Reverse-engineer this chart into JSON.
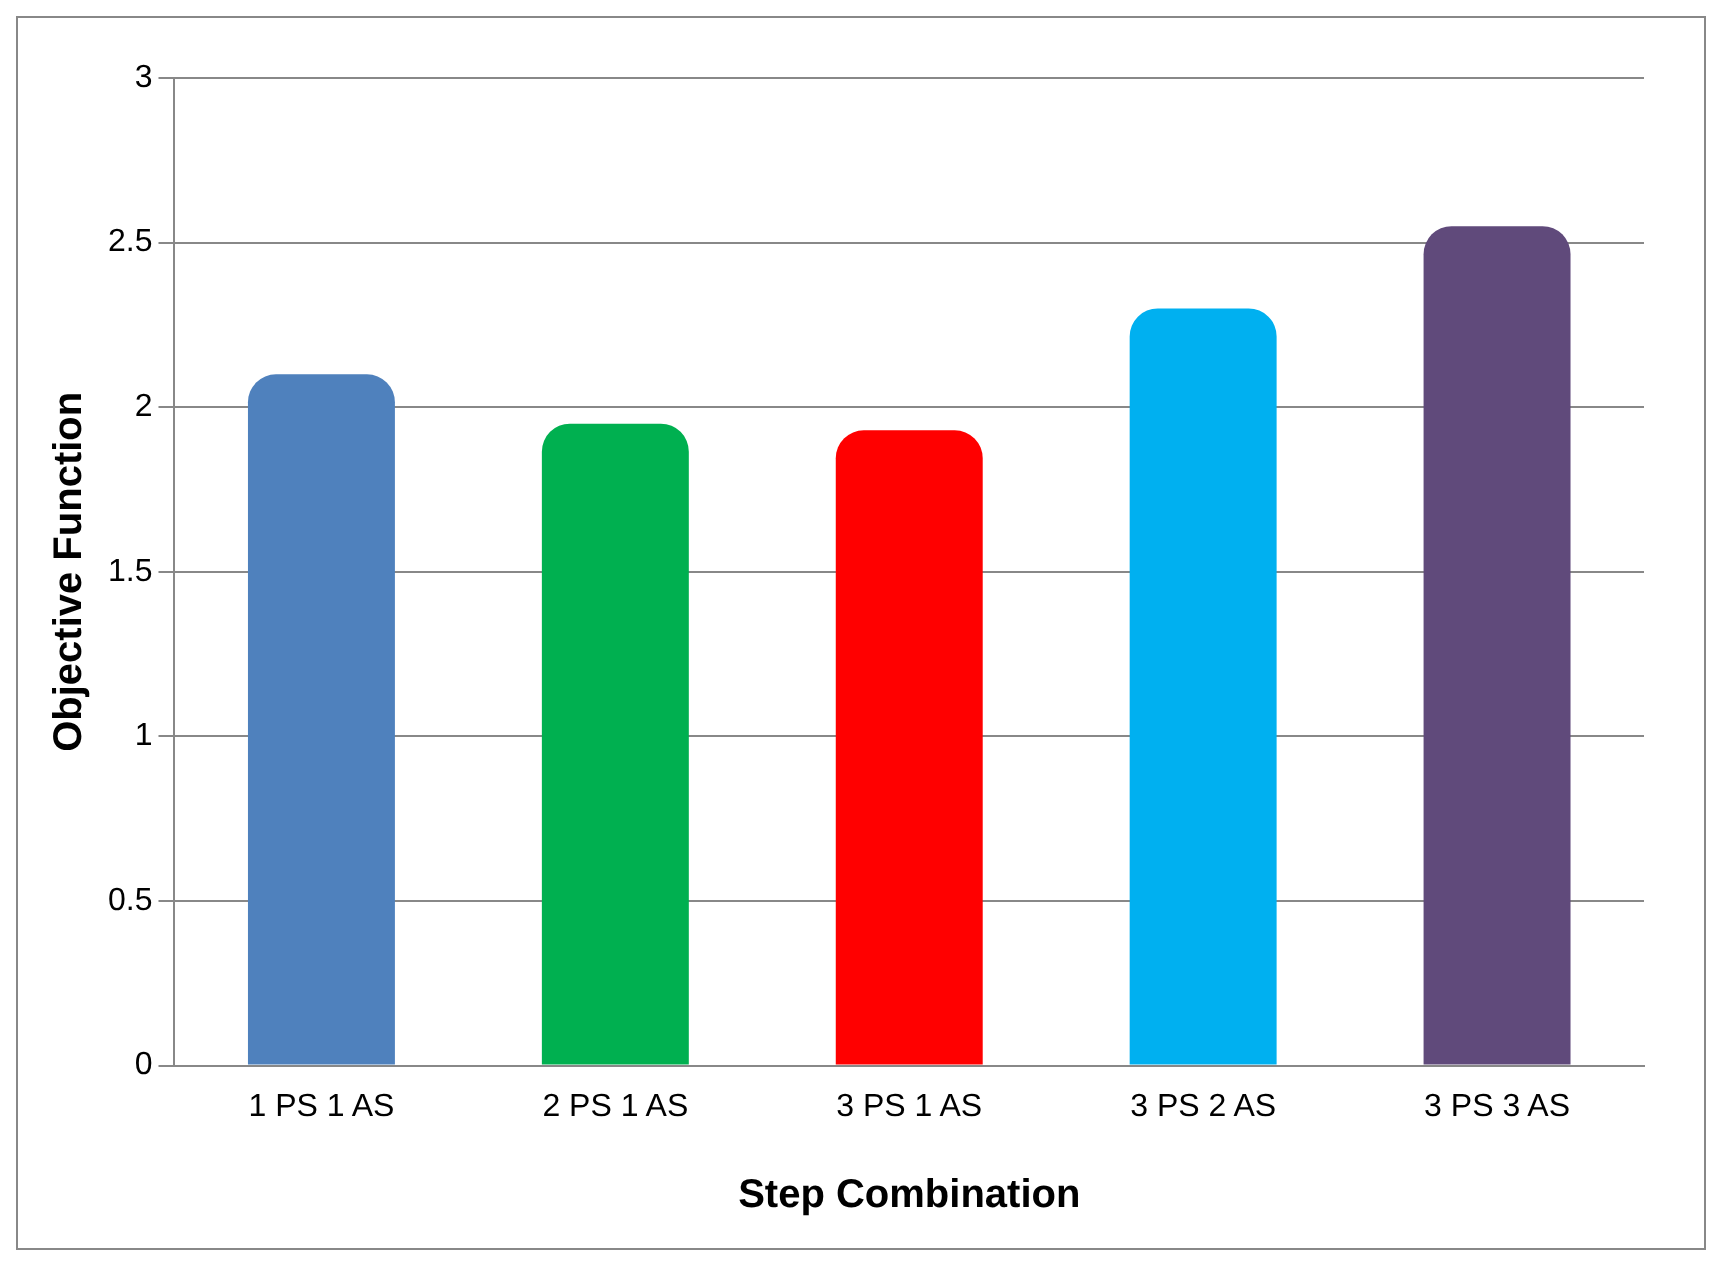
{
  "chart_data": {
    "type": "bar",
    "xlabel": "Step Combination",
    "ylabel": "Objective Function",
    "categories": [
      "1 PS 1 AS",
      "2 PS 1 AS",
      "3 PS 1 AS",
      "3 PS 2 AS",
      "3 PS 3 AS"
    ],
    "values": [
      2.1,
      1.95,
      1.93,
      2.3,
      2.55
    ],
    "colors": [
      "#4f81bd",
      "#00b050",
      "#ff0000",
      "#00b0f0",
      "#604a7b"
    ],
    "ylim": [
      0,
      3
    ],
    "yticks": [
      0,
      0.5,
      1,
      1.5,
      2,
      2.5,
      3
    ],
    "grid": "y",
    "legend": false
  }
}
